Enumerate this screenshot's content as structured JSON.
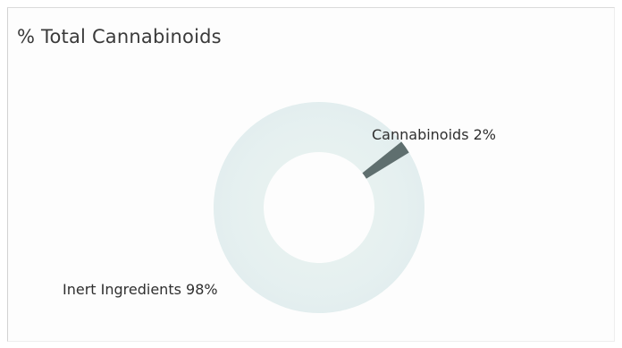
{
  "chart_data": {
    "type": "pie",
    "donut": true,
    "title": "% Total Cannabinoids",
    "slices": [
      {
        "label": "Inert Ingredients",
        "value": 98,
        "display": "Inert Ingredients 98%",
        "color": "#e6f1ef"
      },
      {
        "label": "Cannabinoids",
        "value": 2,
        "display": "Cannabinoids 2%",
        "color": "#5f6f6f"
      }
    ],
    "legend": "none"
  }
}
